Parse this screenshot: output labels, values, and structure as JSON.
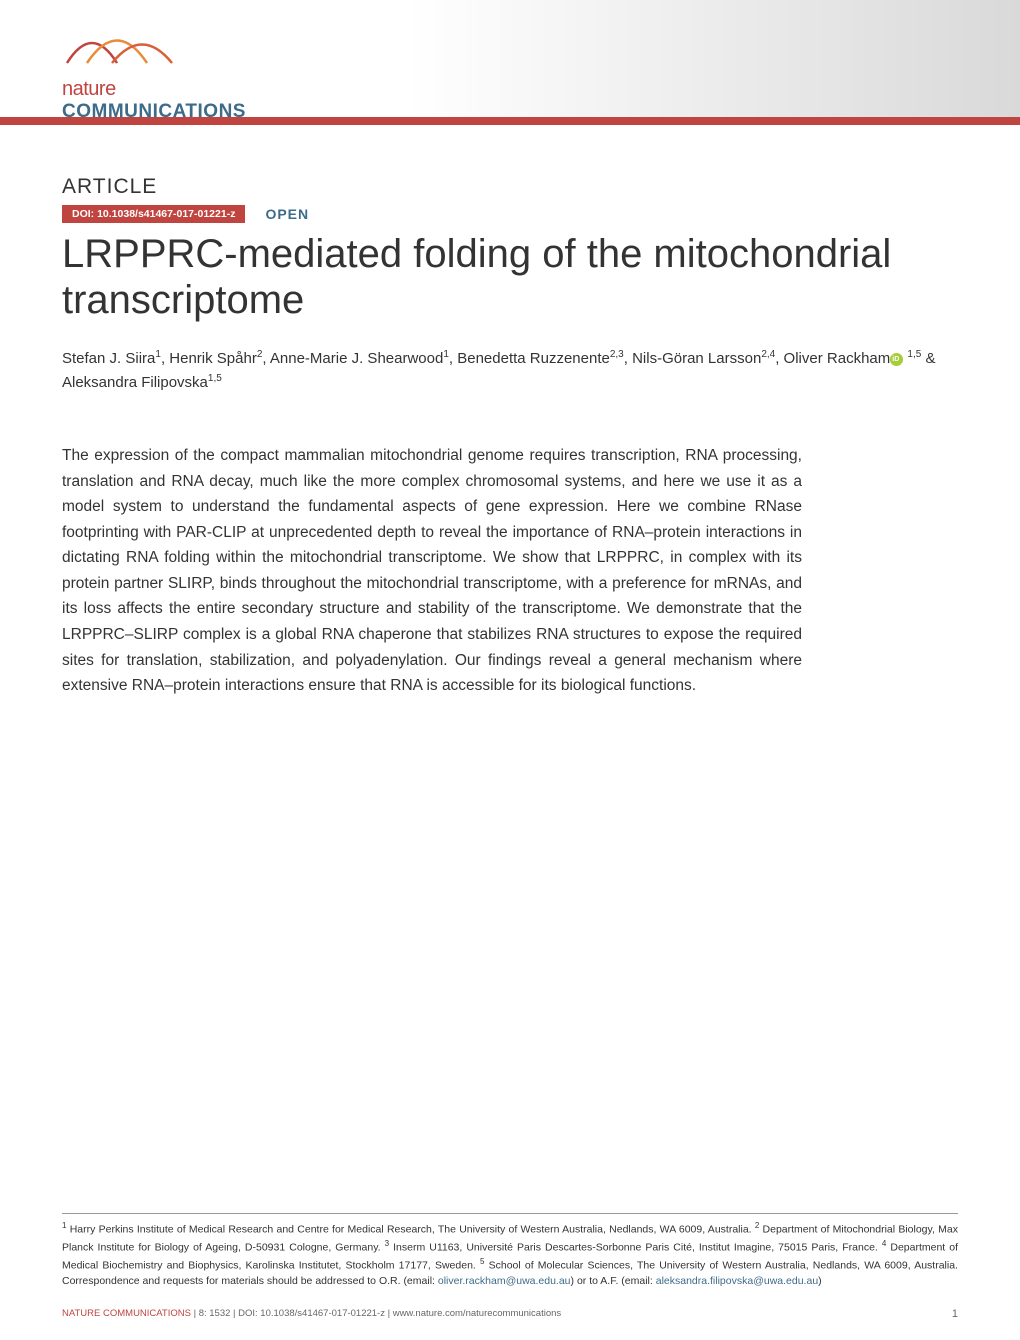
{
  "journal": {
    "logo_top": "nature",
    "logo_bottom": "COMMUNICATIONS",
    "brand_color": "#c0443f",
    "accent_color": "#3d6b8a",
    "swoosh_colors": [
      "#c0443f",
      "#e88b3a",
      "#d95f3a"
    ]
  },
  "article": {
    "label": "ARTICLE",
    "doi": "DOI: 10.1038/s41467-017-01221-z",
    "open": "OPEN",
    "title": "LRPPRC-mediated folding of the mitochondrial transcriptome"
  },
  "authors_html": "Stefan J. Siira<sup>1</sup>, Henrik Spåhr<sup>2</sup>, Anne-Marie J. Shearwood<sup>1</sup>, Benedetta Ruzzenente<sup>2,3</sup>, Nils-Göran Larsson<sup>2,4</sup>, Oliver Rackham<span class='orcid' data-name='orcid-icon' data-interactable='false'></span> <sup>1,5</sup> & Aleksandra Filipovska<sup>1,5</sup>",
  "abstract": "The expression of the compact mammalian mitochondrial genome requires transcription, RNA processing, translation and RNA decay, much like the more complex chromosomal systems, and here we use it as a model system to understand the fundamental aspects of gene expression. Here we combine RNase footprinting with PAR-CLIP at unprecedented depth to reveal the importance of RNA–protein interactions in dictating RNA folding within the mitochondrial transcriptome. We show that LRPPRC, in complex with its protein partner SLIRP, binds throughout the mitochondrial transcriptome, with a preference for mRNAs, and its loss affects the entire secondary structure and stability of the transcriptome. We demonstrate that the LRPPRC–SLIRP complex is a global RNA chaperone that stabilizes RNA structures to expose the required sites for translation, stabilization, and polyadenylation. Our findings reveal a general mechanism where extensive RNA–protein interactions ensure that RNA is accessible for its biological functions.",
  "affiliations_html": "<sup>1</sup> Harry Perkins Institute of Medical Research and Centre for Medical Research, The University of Western Australia, Nedlands, WA 6009, Australia. <sup>2</sup> Department of Mitochondrial Biology, Max Planck Institute for Biology of Ageing, D-50931 Cologne, Germany. <sup>3</sup> Inserm U1163, Université Paris Descartes-Sorbonne Paris Cité, Institut Imagine, 75015 Paris, France. <sup>4</sup> Department of Medical Biochemistry and Biophysics, Karolinska Institutet, Stockholm 17177, Sweden. <sup>5</sup> School of Molecular Sciences, The University of Western Australia, Nedlands, WA 6009, Australia. Correspondence and requests for materials should be addressed to O.R. (email: <span class='email'>oliver.rackham@uwa.edu.au</span>) or to A.F. (email: <span class='email'>aleksandra.filipovska@uwa.edu.au</span>)",
  "footer": {
    "journal_name": "NATURE COMMUNICATIONS",
    "citation": "| 8:  1532   | DOI: 10.1038/s41467-017-01221-z | www.nature.com/naturecommunications",
    "page": "1"
  }
}
